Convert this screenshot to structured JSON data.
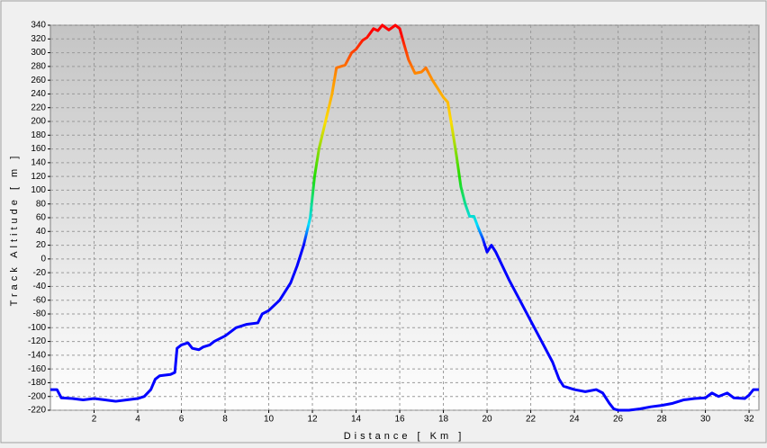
{
  "chart_data": {
    "type": "line",
    "xlabel": "Distance [ Km ]",
    "ylabel": "Track Altitude [ m ]",
    "x": [
      0,
      0.3,
      0.5,
      1,
      1.5,
      2,
      2.5,
      3,
      3.5,
      4,
      4.3,
      4.6,
      4.8,
      5,
      5.5,
      5.7,
      5.8,
      6,
      6.3,
      6.5,
      6.8,
      7,
      7.3,
      7.5,
      8,
      8.5,
      9,
      9.5,
      9.7,
      10,
      10.5,
      11,
      11.3,
      11.6,
      11.9,
      12.1,
      12.3,
      12.6,
      12.9,
      13.1,
      13.5,
      13.8,
      14,
      14.3,
      14.5,
      14.8,
      15,
      15.2,
      15.5,
      15.8,
      16,
      16.2,
      16.4,
      16.7,
      17,
      17.2,
      17.5,
      17.8,
      18,
      18.2,
      18.4,
      18.6,
      18.8,
      19,
      19.2,
      19.4,
      19.6,
      19.8,
      20,
      20.2,
      20.4,
      20.7,
      21,
      21.5,
      22,
      22.5,
      23,
      23.3,
      23.5,
      23.8,
      24,
      24.5,
      25,
      25.3,
      25.6,
      25.8,
      26,
      26.5,
      27,
      27.5,
      28,
      28.5,
      29,
      29.5,
      30,
      30.3,
      30.6,
      31,
      31.3,
      31.8,
      32,
      32.2,
      32.45
    ],
    "values": [
      -190,
      -190,
      -202,
      -203,
      -205,
      -203,
      -205,
      -207,
      -205,
      -203,
      -200,
      -190,
      -175,
      -170,
      -168,
      -165,
      -130,
      -125,
      -122,
      -130,
      -132,
      -128,
      -125,
      -120,
      -112,
      -100,
      -95,
      -93,
      -80,
      -75,
      -60,
      -35,
      -10,
      20,
      60,
      120,
      160,
      200,
      240,
      278,
      282,
      300,
      305,
      318,
      322,
      335,
      332,
      340,
      333,
      340,
      335,
      312,
      290,
      270,
      272,
      278,
      260,
      245,
      235,
      228,
      190,
      150,
      105,
      80,
      62,
      62,
      45,
      30,
      10,
      20,
      10,
      -10,
      -30,
      -60,
      -90,
      -120,
      -150,
      -175,
      -185,
      -188,
      -190,
      -193,
      -190,
      -195,
      -210,
      -218,
      -220,
      -220,
      -218,
      -215,
      -213,
      -210,
      -205,
      -203,
      -202,
      -195,
      -200,
      -195,
      -202,
      -203,
      -198,
      -190,
      -190
    ],
    "colormap": [
      {
        "value": 20,
        "color": "#0000ff"
      },
      {
        "value": 50,
        "color": "#00ddff"
      },
      {
        "value": 120,
        "color": "#22dd00"
      },
      {
        "value": 200,
        "color": "#ffdd00"
      },
      {
        "value": 270,
        "color": "#ff8800"
      },
      {
        "value": 330,
        "color": "#ff0000"
      }
    ],
    "xlim": [
      0,
      32.45
    ],
    "ylim": [
      -220,
      340
    ],
    "xticks": [
      2,
      4,
      6,
      8,
      10,
      12,
      14,
      16,
      18,
      20,
      22,
      24,
      26,
      28,
      30,
      32
    ],
    "yticks": [
      -220,
      -200,
      -180,
      -160,
      -140,
      -120,
      -100,
      -80,
      -60,
      -40,
      -20,
      0,
      20,
      40,
      60,
      80,
      100,
      120,
      140,
      160,
      180,
      200,
      220,
      240,
      260,
      280,
      300,
      320,
      340
    ],
    "grid": true
  }
}
